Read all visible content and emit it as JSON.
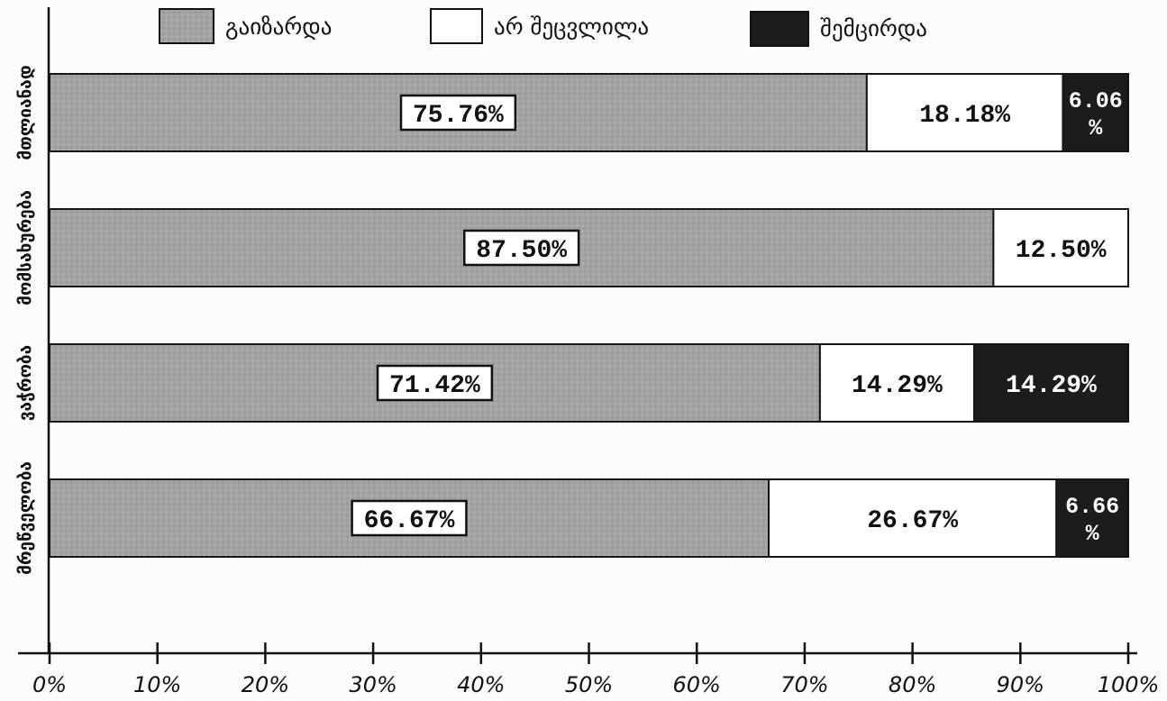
{
  "chart_data": {
    "type": "bar",
    "orientation": "horizontal",
    "stacked": "percent",
    "categories": [
      "მთლიანად",
      "მომსახურება",
      "ვაჭრობა",
      "მრეწველობა"
    ],
    "series": [
      {
        "name": "გაიზარდა",
        "color": "#a3a3a3",
        "values": [
          75.76,
          87.5,
          71.42,
          66.67
        ]
      },
      {
        "name": "არ შეცვლილა",
        "color": "#ffffff",
        "values": [
          18.18,
          12.5,
          14.29,
          26.67
        ]
      },
      {
        "name": "შემცირდა",
        "color": "#1c1c1c",
        "values": [
          6.06,
          0,
          14.29,
          6.66
        ]
      }
    ],
    "xlim": [
      0,
      100
    ],
    "x_ticks": [
      0,
      10,
      20,
      30,
      40,
      50,
      60,
      70,
      80,
      90,
      100
    ],
    "x_tick_labels": [
      "0%",
      "10%",
      "20%",
      "30%",
      "40%",
      "50%",
      "60%",
      "70%",
      "80%",
      "90%",
      "100%"
    ],
    "legend_position": "top",
    "grid": false
  }
}
